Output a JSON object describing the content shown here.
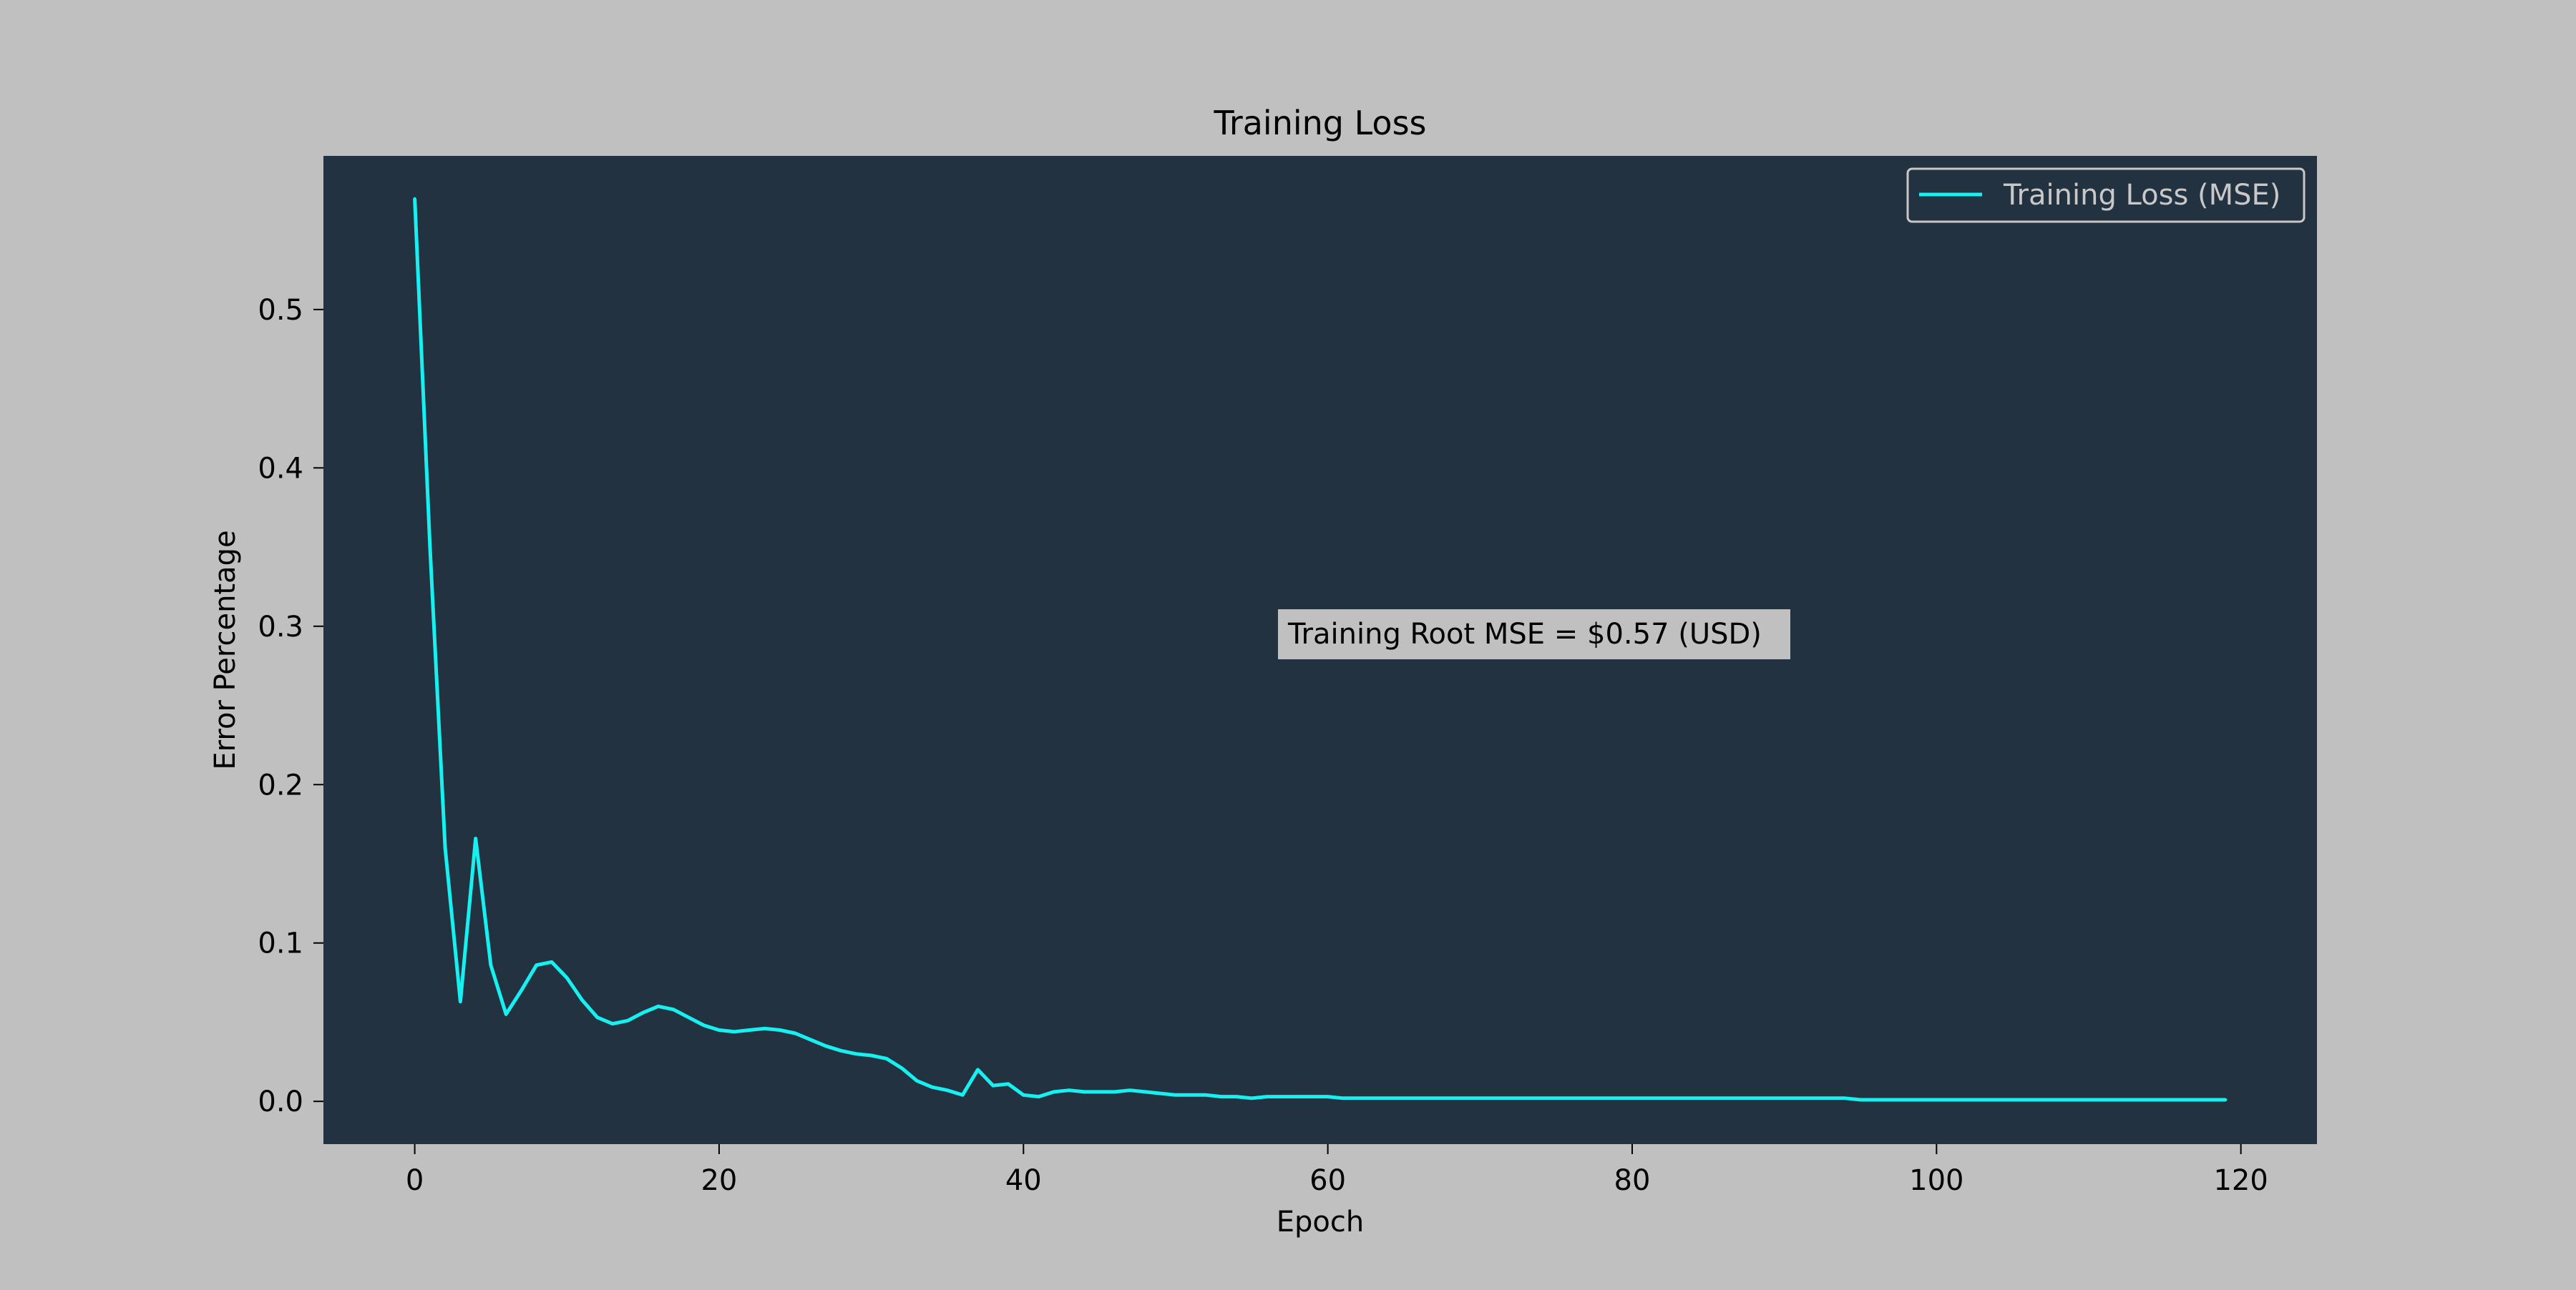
{
  "colors": {
    "figure_background": "#c0c0c0",
    "plot_background": "#223240",
    "series_line": "#16f0f0",
    "annotation_box": "#c0c0c0",
    "legend_text": "#c8c8c8",
    "legend_border": "#c8c8c8",
    "axis_text": "#000000"
  },
  "chart_data": {
    "type": "line",
    "title": "Training Loss",
    "xlabel": "Epoch",
    "ylabel": "Error Percentage",
    "xlim": [
      -6,
      125
    ],
    "ylim": [
      -0.027,
      0.597
    ],
    "xticks": [
      0,
      20,
      40,
      60,
      80,
      100,
      120
    ],
    "xtick_labels": [
      "0",
      "20",
      "40",
      "60",
      "80",
      "100",
      "120"
    ],
    "yticks": [
      0.0,
      0.1,
      0.2,
      0.3,
      0.4,
      0.5
    ],
    "ytick_labels": [
      "0.0",
      "0.1",
      "0.2",
      "0.3",
      "0.4",
      "0.5"
    ],
    "grid": false,
    "legend": {
      "position": "top-right",
      "entries": [
        "Training Loss (MSE)"
      ]
    },
    "annotation": {
      "text": "Training Root MSE = $0.57 (USD)"
    },
    "series": [
      {
        "name": "Training Loss (MSE)",
        "x": [
          0,
          1,
          2,
          3,
          4,
          5,
          6,
          7,
          8,
          9,
          10,
          11,
          12,
          13,
          14,
          15,
          16,
          17,
          18,
          19,
          20,
          21,
          22,
          23,
          24,
          25,
          26,
          27,
          28,
          29,
          30,
          31,
          32,
          33,
          34,
          35,
          36,
          37,
          38,
          39,
          40,
          41,
          42,
          43,
          44,
          45,
          46,
          47,
          48,
          49,
          50,
          51,
          52,
          53,
          54,
          55,
          56,
          57,
          58,
          59,
          60,
          61,
          62,
          63,
          64,
          65,
          66,
          67,
          68,
          69,
          70,
          71,
          72,
          73,
          74,
          75,
          76,
          77,
          78,
          79,
          80,
          81,
          82,
          83,
          84,
          85,
          86,
          87,
          88,
          89,
          90,
          91,
          92,
          93,
          94,
          95,
          96,
          97,
          98,
          99,
          100,
          101,
          102,
          103,
          104,
          105,
          106,
          107,
          108,
          109,
          110,
          111,
          112,
          113,
          114,
          115,
          116,
          117,
          118,
          119
        ],
        "y": [
          0.57,
          0.35,
          0.16,
          0.063,
          0.166,
          0.086,
          0.055,
          0.07,
          0.086,
          0.088,
          0.078,
          0.064,
          0.053,
          0.049,
          0.051,
          0.056,
          0.06,
          0.058,
          0.053,
          0.048,
          0.045,
          0.044,
          0.045,
          0.046,
          0.045,
          0.043,
          0.039,
          0.035,
          0.032,
          0.03,
          0.029,
          0.027,
          0.021,
          0.013,
          0.009,
          0.007,
          0.004,
          0.02,
          0.01,
          0.011,
          0.004,
          0.003,
          0.006,
          0.007,
          0.006,
          0.006,
          0.006,
          0.007,
          0.006,
          0.005,
          0.004,
          0.004,
          0.004,
          0.003,
          0.003,
          0.002,
          0.003,
          0.003,
          0.003,
          0.003,
          0.003,
          0.002,
          0.002,
          0.002,
          0.002,
          0.002,
          0.002,
          0.002,
          0.002,
          0.002,
          0.002,
          0.002,
          0.002,
          0.002,
          0.002,
          0.002,
          0.002,
          0.002,
          0.002,
          0.002,
          0.002,
          0.002,
          0.002,
          0.002,
          0.002,
          0.002,
          0.002,
          0.002,
          0.002,
          0.002,
          0.002,
          0.002,
          0.002,
          0.002,
          0.002,
          0.001,
          0.001,
          0.001,
          0.001,
          0.001,
          0.001,
          0.001,
          0.001,
          0.001,
          0.001,
          0.001,
          0.001,
          0.001,
          0.001,
          0.001,
          0.001,
          0.001,
          0.001,
          0.001,
          0.001,
          0.001,
          0.001,
          0.001,
          0.001,
          0.001
        ]
      }
    ]
  }
}
